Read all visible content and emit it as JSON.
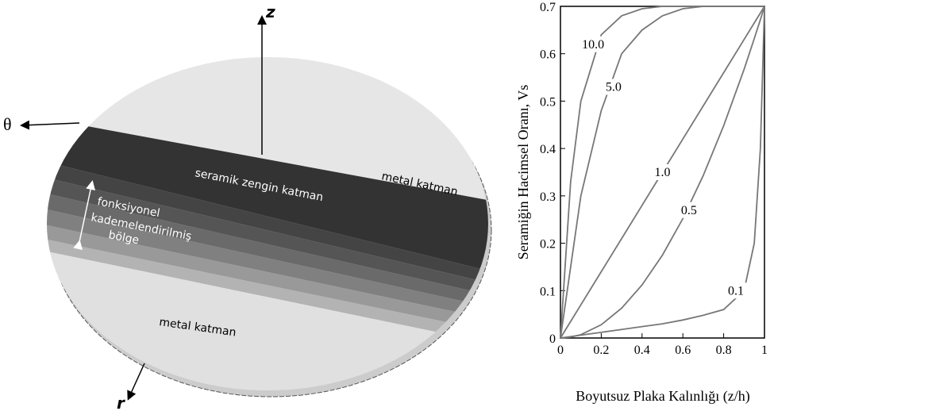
{
  "diagram": {
    "axis_z": "z",
    "axis_theta": "θ",
    "axis_r": "r",
    "top_layer": "metal katman",
    "ceramic_layer": "seramik zengin katman",
    "graded_zone": [
      "fonksiyonel",
      "kademelendirilmiş",
      "bölge"
    ],
    "bottom_layer": "metal katman"
  },
  "chart_data": {
    "type": "line",
    "xlabel": "Boyutsuz Plaka Kalınlığı (z/h)",
    "ylabel": "Seramiğin Hacimsel Oranı, Vs",
    "x": [
      0,
      0.05,
      0.1,
      0.2,
      0.3,
      0.4,
      0.5,
      0.6,
      0.7,
      0.8,
      0.9,
      0.95,
      0.98,
      1
    ],
    "series": [
      {
        "name": "10.0",
        "color": "#777777",
        "values": [
          0,
          0.33,
          0.5,
          0.64,
          0.68,
          0.695,
          0.7,
          0.7,
          0.7,
          0.7,
          0.7,
          0.7,
          0.7,
          0.7
        ]
      },
      {
        "name": "5.0",
        "color": "#777777",
        "values": [
          0,
          0.15,
          0.3,
          0.48,
          0.6,
          0.65,
          0.68,
          0.695,
          0.7,
          0.7,
          0.7,
          0.7,
          0.7,
          0.7
        ]
      },
      {
        "name": "1.0",
        "color": "#777777",
        "values": [
          0,
          0.035,
          0.07,
          0.14,
          0.21,
          0.28,
          0.35,
          0.42,
          0.49,
          0.56,
          0.63,
          0.665,
          0.686,
          0.7
        ]
      },
      {
        "name": "0.5",
        "color": "#777777",
        "values": [
          0,
          0.002,
          0.007,
          0.028,
          0.063,
          0.112,
          0.175,
          0.252,
          0.343,
          0.448,
          0.567,
          0.632,
          0.672,
          0.7
        ]
      },
      {
        "name": "0.1",
        "color": "#777777",
        "values": [
          0,
          0.003,
          0.006,
          0.012,
          0.018,
          0.024,
          0.03,
          0.038,
          0.048,
          0.06,
          0.1,
          0.2,
          0.4,
          0.7
        ]
      }
    ],
    "xlim": [
      0,
      1
    ],
    "ylim": [
      0,
      0.7
    ],
    "xticks": [
      0,
      0.2,
      0.4,
      0.6,
      0.8,
      1
    ],
    "yticks": [
      0,
      0.1,
      0.2,
      0.3,
      0.4,
      0.5,
      0.6,
      0.7
    ]
  }
}
